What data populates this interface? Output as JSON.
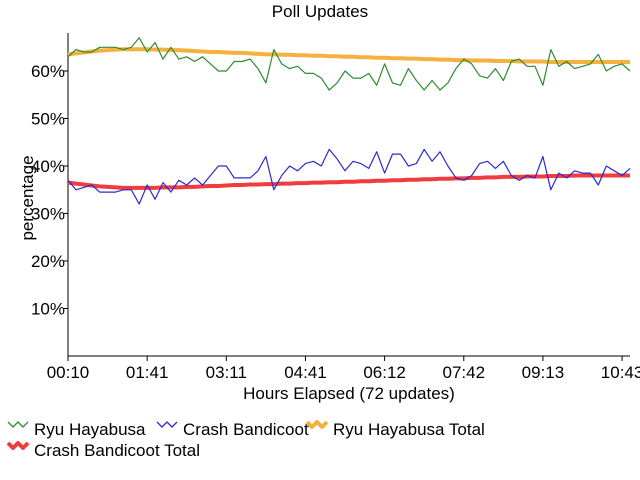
{
  "chart_data": {
    "type": "line",
    "title": "Poll Updates",
    "xlabel": "Hours Elapsed (72 updates)",
    "ylabel": "percentage",
    "x_tick_labels": [
      "00:10",
      "01:41",
      "03:11",
      "04:41",
      "06:12",
      "07:42",
      "09:13",
      "10:43"
    ],
    "y_tick_labels": [
      "10%",
      "20%",
      "30%",
      "40%",
      "50%",
      "60%"
    ],
    "y_ticks": [
      10,
      20,
      30,
      40,
      50,
      60
    ],
    "ylim": [
      0,
      68
    ],
    "grid": false,
    "legend_position": "bottom-left",
    "series": [
      {
        "name": "Ryu Hayabusa",
        "color": "#2e8b2e",
        "values": [
          63,
          64.5,
          64,
          64,
          65,
          65,
          65,
          64.5,
          65,
          67,
          64,
          66,
          62.5,
          65,
          62.5,
          63,
          62,
          63,
          61.5,
          60,
          60,
          62,
          62,
          62.5,
          60.5,
          57.5,
          64.5,
          61.5,
          60.5,
          61,
          59.5,
          59.5,
          58.5,
          56,
          57.5,
          60,
          58.5,
          58.5,
          59.5,
          57,
          61.5,
          57.5,
          57,
          60.5,
          58,
          56,
          58,
          56,
          57.5,
          60.5,
          62.5,
          61.5,
          59,
          58.5,
          60.5,
          58,
          62,
          62.5,
          61,
          61,
          57,
          64.5,
          61,
          62,
          60.5,
          61,
          61.5,
          63.5,
          60,
          61,
          61.5,
          60
        ]
      },
      {
        "name": "Crash Bandicoot",
        "color": "#2b2bcf",
        "values": [
          37,
          35,
          35.5,
          36,
          34.5,
          34.5,
          34.5,
          35,
          35,
          32,
          36,
          33,
          36.5,
          34.5,
          37,
          36,
          37.5,
          36,
          38,
          40,
          40,
          37.5,
          37.5,
          37.5,
          39,
          42,
          35,
          38,
          40,
          39,
          40.5,
          41,
          40,
          43.5,
          41.5,
          39,
          41,
          40.5,
          39.5,
          43,
          38.5,
          42.5,
          42.5,
          40,
          40.5,
          43.5,
          41,
          43,
          40,
          37.5,
          37,
          38,
          40.5,
          41,
          39.5,
          41,
          38,
          37,
          38,
          37.5,
          42,
          35,
          38.5,
          37.5,
          39,
          38.5,
          38.5,
          36,
          40,
          39,
          38,
          39.5
        ]
      },
      {
        "name": "Ryu Hayabusa Total",
        "color": "#f5b13d",
        "values": [
          63.5,
          63.7,
          63.9,
          64.1,
          64.3,
          64.4,
          64.5,
          64.6,
          64.6,
          64.6,
          64.6,
          64.5,
          64.5,
          64.4,
          64.4,
          64.3,
          64.2,
          64.1,
          64.0,
          64.0,
          63.9,
          63.8,
          63.8,
          63.7,
          63.6,
          63.5,
          63.5,
          63.4,
          63.4,
          63.3,
          63.3,
          63.2,
          63.2,
          63.1,
          63.1,
          63.0,
          63.0,
          62.9,
          62.9,
          62.8,
          62.8,
          62.7,
          62.7,
          62.6,
          62.6,
          62.5,
          62.5,
          62.4,
          62.4,
          62.3,
          62.3,
          62.2,
          62.2,
          62.2,
          62.1,
          62.1,
          62.1,
          62.0,
          62.0,
          62.0,
          62.0,
          61.9,
          61.9,
          61.9,
          61.9,
          61.9,
          61.9,
          61.9,
          61.9,
          61.9,
          61.9,
          61.9
        ]
      },
      {
        "name": "Crash Bandicoot Total",
        "color": "#f03c3c",
        "values": [
          36.5,
          36.3,
          36.1,
          35.9,
          35.7,
          35.6,
          35.5,
          35.4,
          35.4,
          35.4,
          35.4,
          35.4,
          35.5,
          35.5,
          35.5,
          35.6,
          35.6,
          35.7,
          35.8,
          35.8,
          35.9,
          36.0,
          36.0,
          36.1,
          36.1,
          36.2,
          36.2,
          36.3,
          36.3,
          36.4,
          36.4,
          36.5,
          36.5,
          36.6,
          36.6,
          36.7,
          36.7,
          36.8,
          36.8,
          36.9,
          36.9,
          37.0,
          37.0,
          37.1,
          37.1,
          37.2,
          37.2,
          37.3,
          37.3,
          37.4,
          37.4,
          37.5,
          37.5,
          37.6,
          37.6,
          37.7,
          37.7,
          37.7,
          37.8,
          37.8,
          37.8,
          37.9,
          37.9,
          37.9,
          38.0,
          38.0,
          38.0,
          38.0,
          38.0,
          38.0,
          38.0,
          38.0
        ]
      }
    ]
  }
}
